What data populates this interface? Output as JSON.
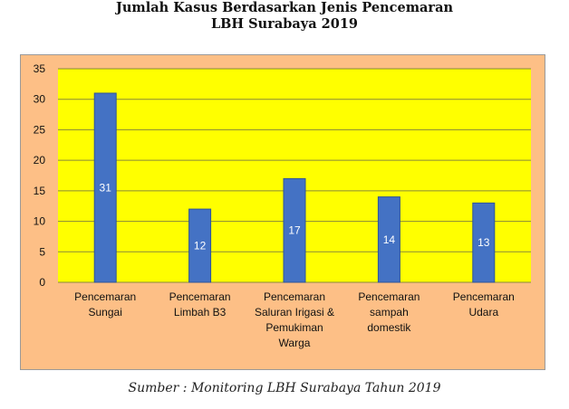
{
  "colors": {
    "chart_background": "#FDBF86",
    "plot_background": "#FFFF00",
    "chart_border": "#9A9A9A",
    "bar": "#4472C4",
    "bar_edge": "#2F5597",
    "gridline": "#8A8A3A",
    "data_label": "#FFFFFF"
  },
  "chart_data": {
    "type": "bar",
    "title": [
      "Jumlah Kasus Berdasarkan Jenis Pencemaran",
      "LBH Surabaya 2019"
    ],
    "categories": [
      [
        "Pencemaran",
        "Sungai"
      ],
      [
        "Pencemaran",
        "Limbah B3"
      ],
      [
        "Pencemaran",
        "Saluran Irigasi  &",
        "Pemukiman",
        "Warga"
      ],
      [
        "Pencemaran",
        "sampah",
        "domestik"
      ],
      [
        "Pencemaran",
        "Udara"
      ]
    ],
    "values": [
      31,
      12,
      17,
      14,
      13
    ],
    "data_labels": [
      "31",
      "12",
      "17",
      "14",
      "13"
    ],
    "ylim": [
      0,
      35
    ],
    "yticks": [
      0,
      5,
      10,
      15,
      20,
      25,
      30,
      35
    ],
    "grid": true,
    "legend": "none",
    "xlabel": "",
    "ylabel": ""
  },
  "source_note": "Sumber : Monitoring LBH Surabaya Tahun 2019"
}
